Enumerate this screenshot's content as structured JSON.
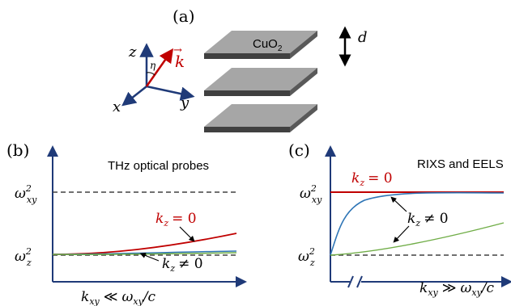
{
  "panel_a": {
    "label": "(a)",
    "layer_label": "CuO",
    "layer_label_sub": "2",
    "spacing_label": "d",
    "axes": {
      "z": "z",
      "x": "x",
      "y": "y",
      "angle": "η",
      "wavevector": "k",
      "vector_arrow": "→"
    },
    "colors": {
      "plate_top": "#a6a6a6",
      "plate_edge": "#404040",
      "axis": "#1f3a78",
      "wavevector": "#c00000"
    }
  },
  "panel_b": {
    "label": "(b)",
    "title": "THz optical probes",
    "level_high": {
      "base": "ω",
      "sub": "xy",
      "sup": "2"
    },
    "level_low": {
      "base": "ω",
      "sub": "z",
      "sup": "2"
    },
    "annotation_red": {
      "k": "k",
      "sub": "z",
      "rel": "= 0"
    },
    "annotation_other": {
      "k": "k",
      "sub": "z",
      "rel": "≠ 0"
    },
    "xlabel": {
      "k": "k",
      "k_sub": "xy",
      "rel": "≪",
      "w": "ω",
      "w_sub": "xy",
      "tail": "/c"
    }
  },
  "panel_c": {
    "label": "(c)",
    "title": "RIXS and EELS",
    "level_high": {
      "base": "ω",
      "sub": "xy",
      "sup": "2"
    },
    "level_low": {
      "base": "ω",
      "sub": "z",
      "sup": "2"
    },
    "annotation_red": {
      "k": "k",
      "sub": "z",
      "rel": "= 0"
    },
    "annotation_other": {
      "k": "k",
      "sub": "z",
      "rel": "≠ 0"
    },
    "axis_break": "//",
    "xlabel": {
      "k": "k",
      "k_sub": "xy",
      "rel": "≫",
      "w": "ω",
      "w_sub": "xy",
      "tail": "/c"
    }
  },
  "colors": {
    "axis": "#1f3a78",
    "red": "#c00000",
    "blue": "#2e75b6",
    "green": "#70ad47",
    "dashed": "#404040",
    "text": "#000000"
  }
}
